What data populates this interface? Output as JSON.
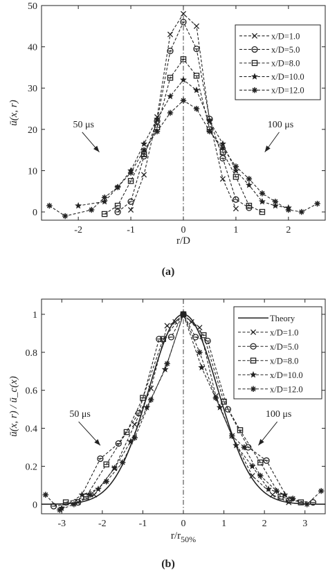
{
  "chart_data": [
    {
      "type": "line",
      "panel_label": "(a)",
      "ylabel": "ū(x, r)",
      "xlabel": "r/D",
      "xlim": [
        -2.7,
        2.7
      ],
      "ylim": [
        -2,
        50
      ],
      "xticks": [
        -2,
        -1,
        0,
        1,
        2
      ],
      "yticks": [
        0,
        10,
        20,
        30,
        40,
        50
      ],
      "grid": false,
      "center_line": "dash-dot at r/D = 0",
      "legend": {
        "placement": "top-right"
      },
      "annotations": [
        {
          "text": "50 μs",
          "x": -1.9,
          "y": 20.5,
          "arrow_to": [
            -1.6,
            14.5
          ]
        },
        {
          "text": "100 μs",
          "x": 1.85,
          "y": 20.5,
          "arrow_to": [
            1.55,
            14.5
          ]
        }
      ],
      "series": [
        {
          "name": "x/D=1.0",
          "marker": "x",
          "x": [
            -1.0,
            -0.75,
            -0.5,
            -0.25,
            0,
            0.25,
            0.5,
            0.75,
            1.0
          ],
          "y": [
            0.5,
            9,
            23,
            43,
            48,
            45,
            22,
            8,
            0.8
          ]
        },
        {
          "name": "x/D=5.0",
          "marker": "circle",
          "x": [
            -1.25,
            -1.0,
            -0.75,
            -0.5,
            -0.25,
            0,
            0.25,
            0.5,
            0.75,
            1.0,
            1.25
          ],
          "y": [
            0,
            2.5,
            13.5,
            22,
            39,
            46,
            39.5,
            22.5,
            13,
            3,
            1
          ]
        },
        {
          "name": "x/D=8.0",
          "marker": "square",
          "x": [
            -1.5,
            -1.25,
            -1.0,
            -0.75,
            -0.5,
            -0.25,
            0,
            0.25,
            0.5,
            0.75,
            1.0,
            1.25,
            1.5
          ],
          "y": [
            -0.5,
            1.5,
            7.5,
            14,
            20.5,
            32.5,
            37,
            33,
            20,
            14.5,
            8.5,
            1.5,
            0
          ]
        },
        {
          "name": "x/D=10.0",
          "marker": "star",
          "x": [
            -2.0,
            -1.5,
            -1.25,
            -1.0,
            -0.75,
            -0.5,
            -0.25,
            0,
            0.25,
            0.5,
            0.75,
            1.0,
            1.25,
            1.5,
            1.75,
            2.0
          ],
          "y": [
            1.5,
            2.5,
            6,
            10,
            16.5,
            22.5,
            28,
            32,
            29.5,
            22,
            16.5,
            10,
            6.5,
            2.5,
            1.5,
            1
          ]
        },
        {
          "name": "x/D=12.0",
          "marker": "asterisk",
          "x": [
            -2.55,
            -2.25,
            -1.75,
            -1.5,
            -1.25,
            -1.0,
            -0.75,
            -0.5,
            -0.25,
            0,
            0.25,
            0.5,
            0.75,
            1.0,
            1.25,
            1.5,
            1.75,
            2.0,
            2.25,
            2.55
          ],
          "y": [
            1.5,
            -1,
            0.5,
            3.5,
            6,
            9.5,
            15,
            19.5,
            24,
            27,
            25,
            19.5,
            15.5,
            11,
            8,
            4.5,
            2.5,
            0.5,
            0,
            2
          ]
        }
      ]
    },
    {
      "type": "line",
      "panel_label": "(b)",
      "ylabel": "ū(x, r) / ū_c(x)",
      "xlabel": "r/r",
      "xlabel_sub": "50%",
      "xlim": [
        -3.5,
        3.5
      ],
      "ylim": [
        -0.05,
        1.08
      ],
      "xticks": [
        -3,
        -2,
        -1,
        0,
        1,
        2,
        3
      ],
      "yticks": [
        0,
        0.2,
        0.4,
        0.6,
        0.8,
        1
      ],
      "grid": false,
      "center_line": "dash-dot at r/r50% = 0",
      "legend": {
        "placement": "top-right"
      },
      "annotations": [
        {
          "text": "50 μs",
          "x": -2.55,
          "y": 0.46,
          "arrow_to": [
            -2.05,
            0.31
          ]
        },
        {
          "text": "100 μs",
          "x": 2.35,
          "y": 0.46,
          "arrow_to": [
            1.85,
            0.31
          ]
        }
      ],
      "theory": {
        "name": "Theory",
        "form": "exp(-ln2 · (r/r50%)^2)"
      },
      "series": [
        {
          "name": "x/D=1.0",
          "marker": "x",
          "x": [
            -2.6,
            -2.2,
            -1.7,
            -1.2,
            -0.8,
            -0.4,
            -0.2,
            0,
            0.2,
            0.4,
            0.8,
            1.2,
            1.7,
            2.2,
            2.6
          ],
          "y": [
            0.01,
            0.05,
            0.19,
            0.42,
            0.61,
            0.94,
            0.96,
            1.0,
            0.96,
            0.93,
            0.57,
            0.36,
            0.15,
            0.05,
            0.01
          ]
        },
        {
          "name": "x/D=5.0",
          "marker": "circle",
          "x": [
            -3.2,
            -2.6,
            -2.05,
            -1.6,
            -1.1,
            -0.6,
            -0.3,
            0,
            0.3,
            0.6,
            1.1,
            1.6,
            2.05,
            2.6,
            3.2
          ],
          "y": [
            -0.01,
            0.01,
            0.24,
            0.32,
            0.48,
            0.87,
            0.88,
            1.0,
            0.88,
            0.86,
            0.5,
            0.3,
            0.23,
            0.02,
            0.01
          ]
        },
        {
          "name": "x/D=8.0",
          "marker": "square",
          "x": [
            -2.9,
            -2.4,
            -1.9,
            -1.4,
            -1.0,
            -0.5,
            0,
            0.5,
            1.0,
            1.4,
            1.9,
            2.4,
            2.9
          ],
          "y": [
            0.01,
            0.04,
            0.21,
            0.38,
            0.56,
            0.87,
            1.0,
            0.89,
            0.54,
            0.39,
            0.22,
            0.04,
            0.01
          ]
        },
        {
          "name": "x/D=10.0",
          "marker": "star",
          "x": [
            -3.0,
            -2.5,
            -2.1,
            -1.7,
            -1.3,
            -0.9,
            -0.45,
            0,
            0.45,
            0.9,
            1.3,
            1.7,
            2.1,
            2.5
          ],
          "y": [
            -0.02,
            0.05,
            0.08,
            0.19,
            0.33,
            0.51,
            0.71,
            1.0,
            0.72,
            0.51,
            0.31,
            0.2,
            0.08,
            0.05
          ]
        },
        {
          "name": "x/D=12.0",
          "marker": "asterisk",
          "x": [
            -3.4,
            -3.05,
            -2.7,
            -2.3,
            -1.9,
            -1.5,
            -1.2,
            -0.8,
            -0.4,
            0,
            0.4,
            0.8,
            1.2,
            1.5,
            1.9,
            2.3,
            2.7,
            3.05,
            3.4
          ],
          "y": [
            0.05,
            -0.03,
            0.0,
            0.05,
            0.12,
            0.22,
            0.35,
            0.55,
            0.74,
            1.0,
            0.8,
            0.56,
            0.36,
            0.3,
            0.15,
            0.07,
            0.03,
            0.0,
            0.07
          ]
        }
      ]
    }
  ]
}
